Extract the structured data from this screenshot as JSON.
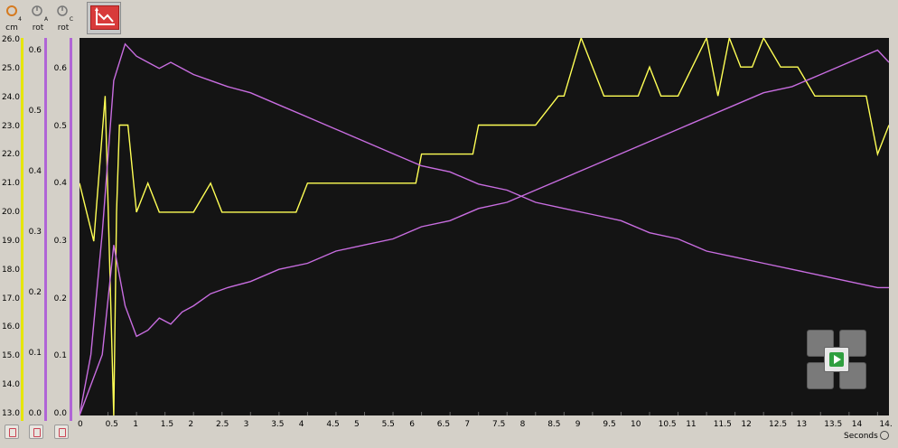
{
  "columns": [
    {
      "unit": "cm",
      "port": "4",
      "icon": "ultrasonic-sensor-icon"
    },
    {
      "unit": "rot",
      "port": "A",
      "icon": "motor-rotation-icon"
    },
    {
      "unit": "rot",
      "port": "C",
      "icon": "motor-rotation-icon"
    }
  ],
  "axes": {
    "cm": [
      "26.0",
      "25.0",
      "24.0",
      "23.0",
      "22.0",
      "21.0",
      "20.0",
      "19.0",
      "18.0",
      "17.0",
      "16.0",
      "15.0",
      "14.0",
      "13.0"
    ],
    "rot_a": [
      "0.6",
      "0.5",
      "0.4",
      "0.3",
      "0.2",
      "0.1",
      "0.0"
    ],
    "rot_c": [
      "0.6",
      "0.5",
      "0.4",
      "0.3",
      "0.2",
      "0.1",
      "0.0"
    ],
    "rot_top": [
      "0.6",
      "0.6"
    ]
  },
  "x_axis": {
    "ticks": [
      "0",
      "0.5",
      "1",
      "1.5",
      "2",
      "2.5",
      "3",
      "3.5",
      "4",
      "4.5",
      "5",
      "5.5",
      "6",
      "6.5",
      "7",
      "7.5",
      "8",
      "8.5",
      "9",
      "9.5",
      "10",
      "10.5",
      "11",
      "11.5",
      "12",
      "12.5",
      "13",
      "13.5",
      "14",
      "14."
    ],
    "label": "Seconds"
  },
  "colors": {
    "yellow": "#ffff55",
    "purple": "#c86de0",
    "plot_bg": "#141414"
  },
  "chart_data": {
    "type": "line",
    "xlabel": "Seconds",
    "xlim": [
      0,
      14.2
    ],
    "series": [
      {
        "axis": "cm",
        "color": "#ffff55",
        "x": [
          0,
          0.25,
          0.45,
          0.6,
          0.65,
          0.7,
          0.85,
          1.0,
          1.2,
          1.4,
          1.6,
          1.8,
          2.0,
          2.3,
          2.5,
          2.8,
          3.0,
          3.4,
          3.8,
          4.0,
          4.4,
          5.0,
          5.5,
          5.9,
          6.0,
          6.5,
          6.9,
          7.0,
          7.5,
          8.0,
          8.4,
          8.5,
          8.8,
          9.0,
          9.2,
          9.8,
          10.0,
          10.2,
          10.5,
          11.0,
          11.2,
          11.4,
          11.6,
          11.8,
          12.0,
          12.3,
          12.6,
          12.9,
          13.0,
          13.5,
          13.8,
          14.0,
          14.2
        ],
        "y": [
          21,
          19,
          24,
          13,
          20,
          23,
          23,
          20,
          21,
          20,
          20,
          20,
          20,
          21,
          20,
          20,
          20,
          20,
          20,
          21,
          21,
          21,
          21,
          21,
          22,
          22,
          22,
          23,
          23,
          23,
          24,
          24,
          26,
          25,
          24,
          24,
          25,
          24,
          24,
          26,
          24,
          26,
          25,
          25,
          26,
          25,
          25,
          24,
          24,
          24,
          24,
          22,
          23
        ]
      },
      {
        "axis": "rot",
        "color": "#c86de0",
        "x": [
          0,
          0.2,
          0.4,
          0.6,
          0.8,
          1.0,
          1.2,
          1.4,
          1.6,
          1.8,
          2.0,
          2.3,
          2.6,
          3.0,
          3.5,
          4.0,
          4.5,
          5.0,
          5.5,
          6.0,
          6.5,
          7.0,
          7.5,
          8.0,
          8.5,
          9.0,
          9.5,
          10.0,
          10.5,
          11.0,
          11.5,
          12.0,
          12.5,
          13.0,
          13.5,
          14.0,
          14.2
        ],
        "y": [
          0.0,
          0.1,
          0.3,
          0.55,
          0.61,
          0.59,
          0.58,
          0.57,
          0.58,
          0.57,
          0.56,
          0.55,
          0.54,
          0.53,
          0.51,
          0.49,
          0.47,
          0.45,
          0.43,
          0.41,
          0.4,
          0.38,
          0.37,
          0.35,
          0.34,
          0.33,
          0.32,
          0.3,
          0.29,
          0.27,
          0.26,
          0.25,
          0.24,
          0.23,
          0.22,
          0.21,
          0.21
        ]
      },
      {
        "axis": "rot",
        "color": "#c86de0",
        "x": [
          0,
          0.2,
          0.4,
          0.6,
          0.8,
          1.0,
          1.2,
          1.4,
          1.6,
          1.8,
          2.0,
          2.3,
          2.6,
          3.0,
          3.5,
          4.0,
          4.5,
          5.0,
          5.5,
          6.0,
          6.5,
          7.0,
          7.5,
          8.0,
          8.5,
          9.0,
          9.5,
          10.0,
          10.5,
          11.0,
          11.5,
          12.0,
          12.5,
          13.0,
          13.5,
          14.0,
          14.2
        ],
        "y": [
          0.0,
          0.05,
          0.1,
          0.28,
          0.18,
          0.13,
          0.14,
          0.16,
          0.15,
          0.17,
          0.18,
          0.2,
          0.21,
          0.22,
          0.24,
          0.25,
          0.27,
          0.28,
          0.29,
          0.31,
          0.32,
          0.34,
          0.35,
          0.37,
          0.39,
          0.41,
          0.43,
          0.45,
          0.47,
          0.49,
          0.51,
          0.53,
          0.54,
          0.56,
          0.58,
          0.6,
          0.58
        ]
      }
    ]
  }
}
